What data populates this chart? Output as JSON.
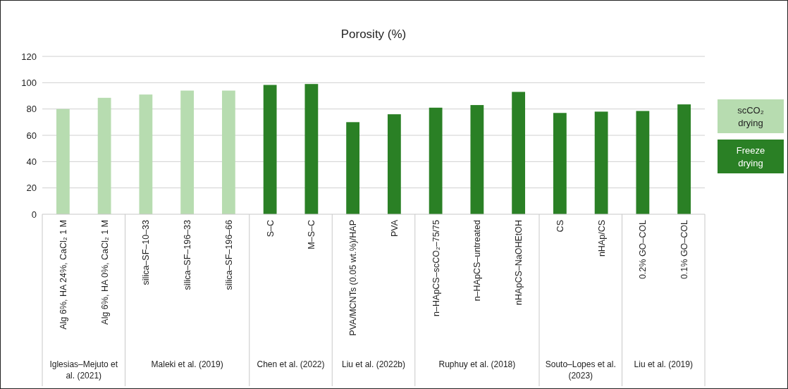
{
  "chart_data": {
    "type": "bar",
    "title": "Porosity (%)",
    "categories": [
      "Alg 6%, HA 24%, CaCl₂ 1 M",
      "Alg 6%, HA 0%, CaCl₂ 1 M",
      "silica–SF–10–33",
      "silica–SF–196–33",
      "silica–SF–196–66",
      "S–C",
      "M–S–C",
      "PVA/MCNTs (0.05 wt.%)/HAP",
      "PVA",
      "n–HApCS–scCO₂–75/75",
      "n–HApCS–untreated",
      "nHApCS–NaOHEtOH",
      "CS",
      "nHAp/CS",
      "0.2% GO–COL",
      "0.1% GO–COL"
    ],
    "series": [
      {
        "name": "scCO₂ drying",
        "color": "#b7dcb0",
        "values": [
          80,
          88.5,
          91,
          94,
          94,
          null,
          null,
          null,
          null,
          null,
          null,
          null,
          null,
          null,
          null,
          null
        ]
      },
      {
        "name": "Freeze drying",
        "color": "#2a8025",
        "values": [
          null,
          null,
          null,
          null,
          null,
          98.3,
          99,
          70,
          76,
          81,
          83,
          93,
          77,
          78,
          78.5,
          83.5
        ]
      }
    ],
    "ylim": [
      0,
      120
    ],
    "yticks": [
      0,
      20,
      40,
      60,
      80,
      100,
      120
    ],
    "grid": "y",
    "legend": "right",
    "annotations": [
      "Iglesias–Mejuto et al. (2021)",
      "Maleki et al. (2019)",
      "Chen et al. (2022)",
      "Liu et al. (2022b)",
      "Ruphuy et al. (2018)",
      "Souto–Lopes et al. (2023)",
      "Liu et al. (2019)"
    ]
  }
}
